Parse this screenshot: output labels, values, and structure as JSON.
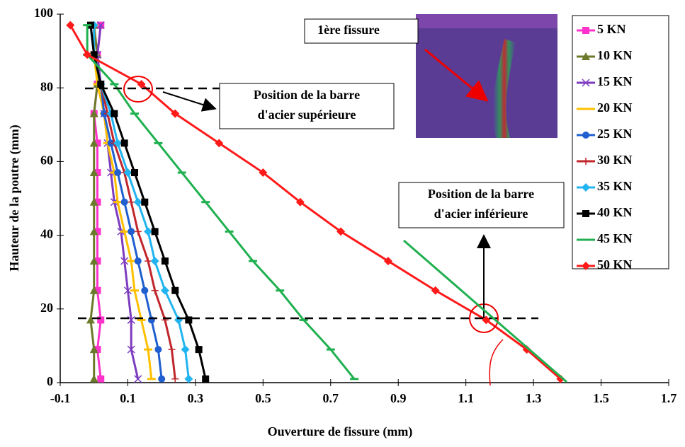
{
  "chart_data": {
    "type": "line",
    "x_label": "Ouverture de fissure (mm)",
    "y_label": "Hauteur de la poutre (mm)",
    "xlim": [
      -0.1,
      1.7
    ],
    "xticks": [
      -0.1,
      0.1,
      0.3,
      0.5,
      0.7,
      0.9,
      1.1,
      1.3,
      1.5,
      1.7
    ],
    "ylim": [
      0,
      100
    ],
    "yticks": [
      0,
      20,
      40,
      60,
      80,
      100
    ],
    "grid": false,
    "legend": "right",
    "annotations": {
      "crack": "1ère fissure",
      "upper_bar": [
        "Position de la barre",
        "d'acier supérieure"
      ],
      "lower_bar": [
        "Position de la barre",
        "d'acier inférieure"
      ]
    },
    "series": [
      {
        "name": "5 KN",
        "color": "#ff33cc",
        "marker": "square",
        "x": [
          0.02,
          0.01,
          0.02,
          0.01,
          0.01,
          0.01,
          0.01,
          0.01,
          0.01,
          0.0,
          0.01,
          0.01,
          0.02
        ],
        "values": [
          1,
          9,
          17,
          25,
          33,
          41,
          49,
          57,
          65,
          73,
          81,
          89,
          97
        ]
      },
      {
        "name": "10 KN",
        "color": "#6b7a2a",
        "marker": "triangle",
        "x": [
          0.0,
          0.0,
          -0.01,
          0.0,
          0.0,
          0.0,
          0.0,
          0.0,
          0.0,
          0.0,
          0.01,
          0.01,
          0.0
        ],
        "values": [
          1,
          9,
          17,
          25,
          33,
          41,
          49,
          57,
          65,
          73,
          81,
          89,
          97
        ]
      },
      {
        "name": "15 KN",
        "color": "#7d3cc0",
        "marker": "x",
        "x": [
          0.13,
          0.11,
          0.11,
          0.1,
          0.09,
          0.08,
          0.06,
          0.05,
          0.04,
          0.03,
          0.02,
          0.01,
          0.02
        ],
        "values": [
          1,
          9,
          17,
          25,
          33,
          41,
          49,
          57,
          65,
          73,
          81,
          89,
          97
        ]
      },
      {
        "name": "20 KN",
        "color": "#ffc000",
        "marker": "dash",
        "x": [
          0.17,
          0.16,
          0.14,
          0.12,
          0.11,
          0.09,
          0.07,
          0.06,
          0.04,
          0.03,
          0.01,
          0.0,
          0.0
        ],
        "values": [
          1,
          9,
          17,
          25,
          33,
          41,
          49,
          57,
          65,
          73,
          81,
          89,
          97
        ]
      },
      {
        "name": "25 KN",
        "color": "#1f5fd0",
        "marker": "circle",
        "x": [
          0.2,
          0.19,
          0.17,
          0.15,
          0.13,
          0.11,
          0.09,
          0.07,
          0.05,
          0.03,
          0.02,
          0.0,
          -0.01
        ],
        "values": [
          1,
          9,
          17,
          25,
          33,
          41,
          49,
          57,
          65,
          73,
          81,
          89,
          97
        ]
      },
      {
        "name": "30 KN",
        "color": "#c0262b",
        "marker": "plus",
        "x": [
          0.24,
          0.23,
          0.21,
          0.18,
          0.16,
          0.13,
          0.11,
          0.09,
          0.06,
          0.04,
          0.02,
          0.0,
          0.0
        ],
        "values": [
          1,
          9,
          17,
          25,
          33,
          41,
          49,
          57,
          65,
          73,
          81,
          89,
          97
        ]
      },
      {
        "name": "35 KN",
        "color": "#22b4f0",
        "marker": "diamond",
        "x": [
          0.28,
          0.27,
          0.25,
          0.21,
          0.18,
          0.16,
          0.13,
          0.1,
          0.07,
          0.05,
          0.02,
          0.0,
          0.0
        ],
        "values": [
          1,
          9,
          17,
          25,
          33,
          41,
          49,
          57,
          65,
          73,
          81,
          89,
          97
        ]
      },
      {
        "name": "40 KN",
        "color": "#000000",
        "marker": "square",
        "x": [
          0.33,
          0.31,
          0.28,
          0.24,
          0.21,
          0.18,
          0.15,
          0.12,
          0.09,
          0.06,
          0.02,
          0.0,
          -0.01
        ],
        "values": [
          1,
          9,
          17,
          25,
          33,
          41,
          49,
          57,
          65,
          73,
          81,
          89,
          97
        ]
      },
      {
        "name": "45 KN",
        "color": "#20b050",
        "marker": "dash",
        "x": [
          0.77,
          0.7,
          0.62,
          0.55,
          0.47,
          0.4,
          0.33,
          0.26,
          0.19,
          0.12,
          0.06,
          -0.02,
          -0.02
        ],
        "values": [
          1,
          9,
          17,
          25,
          33,
          41,
          49,
          57,
          65,
          73,
          81,
          89,
          97
        ]
      },
      {
        "name": "50 KN",
        "color": "#ff1a1a",
        "marker": "diamond",
        "x": [
          1.38,
          1.28,
          1.16,
          1.01,
          0.87,
          0.73,
          0.61,
          0.5,
          0.37,
          0.24,
          0.14,
          -0.02,
          -0.07
        ],
        "values": [
          1,
          9,
          17,
          25,
          33,
          41,
          49,
          57,
          65,
          73,
          81,
          89,
          97
        ]
      }
    ]
  }
}
